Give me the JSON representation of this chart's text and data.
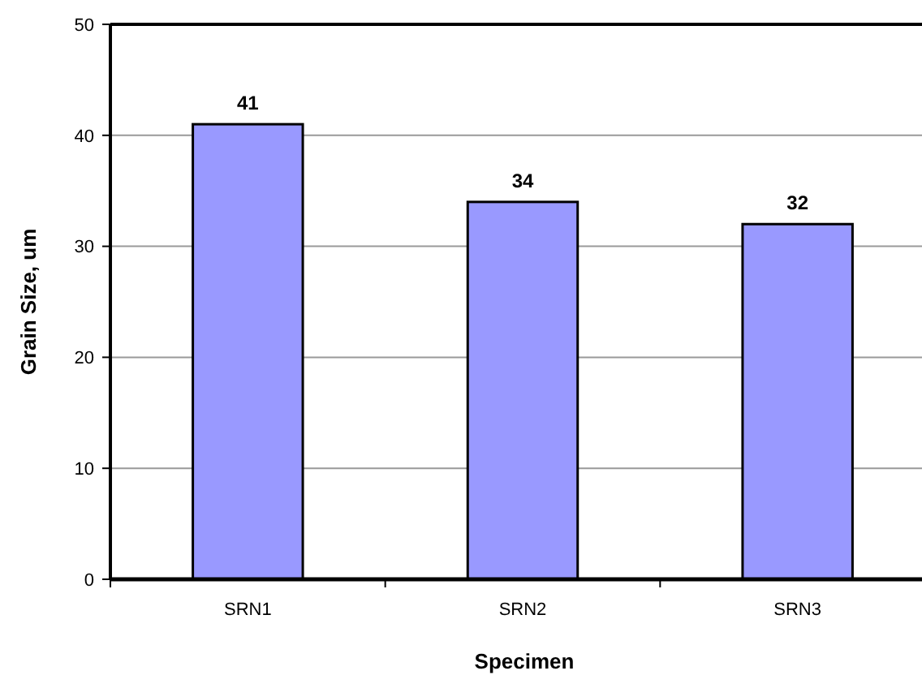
{
  "chart_data": {
    "type": "bar",
    "xlabel": "Specimen",
    "ylabel": "Grain Size, um",
    "categories": [
      "SRN1",
      "SRN2",
      "SRN3"
    ],
    "values": [
      41,
      34,
      32
    ],
    "color": "#9999ff",
    "ylim": [
      0,
      50
    ],
    "yticks": [
      0,
      10,
      20,
      30,
      40,
      50
    ],
    "grid": "y",
    "data_labels": true
  }
}
